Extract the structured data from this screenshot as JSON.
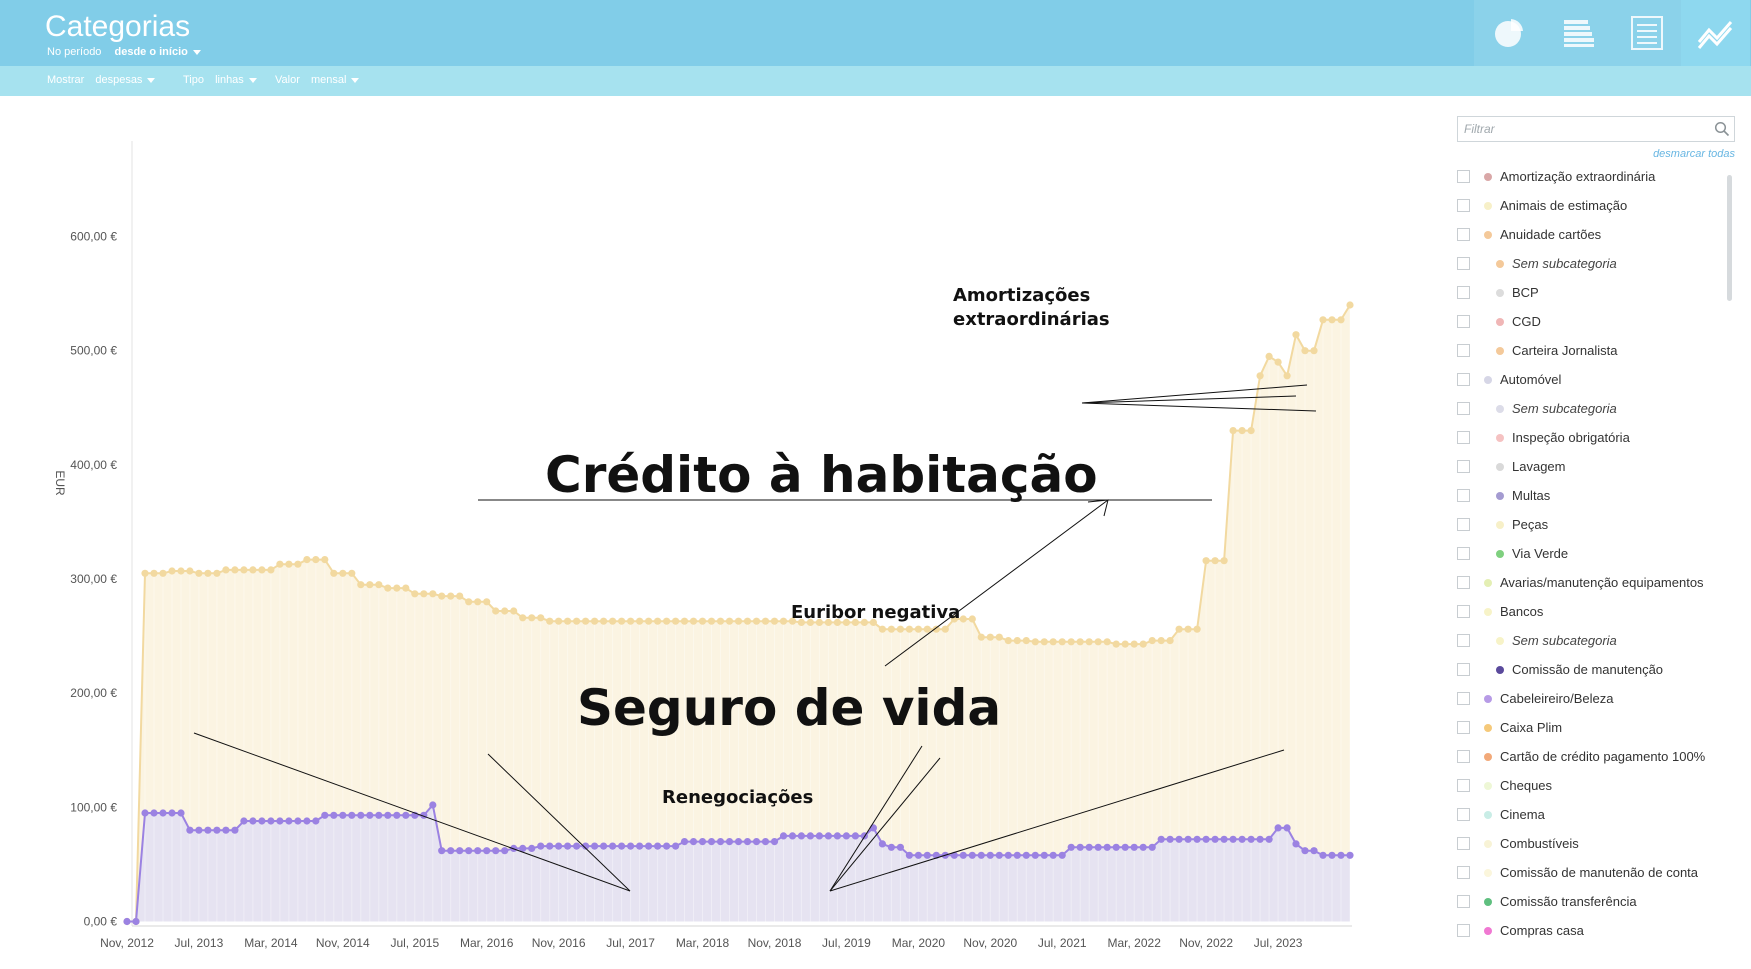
{
  "header": {
    "title": "Categorias",
    "period_label": "No período",
    "period_value": "desde o início"
  },
  "filters": {
    "show_label": "Mostrar",
    "show_value": "despesas",
    "type_label": "Tipo",
    "type_value": "linhas",
    "value_label": "Valor",
    "value_value": "mensal"
  },
  "views": [
    {
      "icon": "pie-chart-icon",
      "active": false
    },
    {
      "icon": "stacked-bars-icon",
      "active": false
    },
    {
      "icon": "list-document-icon",
      "active": false
    },
    {
      "icon": "line-chart-icon",
      "active": true
    }
  ],
  "sidebar": {
    "filter_placeholder": "Filtrar",
    "uncheck_all": "desmarcar todas",
    "categories": [
      {
        "label": "Amortização extraordinária",
        "color": "#d9a7a7",
        "sub": false,
        "italic": false
      },
      {
        "label": "Animais de estimação",
        "color": "#f7f0c8",
        "sub": false,
        "italic": false
      },
      {
        "label": "Anuidade cartões",
        "color": "#f4c99a",
        "sub": false,
        "italic": false
      },
      {
        "label": "Sem subcategoria",
        "color": "#f4c99a",
        "sub": true,
        "italic": true
      },
      {
        "label": "BCP",
        "color": "#dcdcdc",
        "sub": true,
        "italic": false
      },
      {
        "label": "CGD",
        "color": "#f0b6b6",
        "sub": true,
        "italic": false
      },
      {
        "label": "Carteira Jornalista",
        "color": "#f4c99a",
        "sub": true,
        "italic": false
      },
      {
        "label": "Automóvel",
        "color": "#d6d6e6",
        "sub": false,
        "italic": false
      },
      {
        "label": "Sem subcategoria",
        "color": "#dcdce8",
        "sub": true,
        "italic": true
      },
      {
        "label": "Inspeção obrigatória",
        "color": "#f5c2c2",
        "sub": true,
        "italic": false
      },
      {
        "label": "Lavagem",
        "color": "#d9d9d9",
        "sub": true,
        "italic": false
      },
      {
        "label": "Multas",
        "color": "#a49bd1",
        "sub": true,
        "italic": false
      },
      {
        "label": "Peças",
        "color": "#f7f0c8",
        "sub": true,
        "italic": false
      },
      {
        "label": "Via Verde",
        "color": "#7fd07f",
        "sub": true,
        "italic": false
      },
      {
        "label": "Avarias/manutenção equipamentos",
        "color": "#e4efb4",
        "sub": false,
        "italic": false
      },
      {
        "label": "Bancos",
        "color": "#f7f3c8",
        "sub": false,
        "italic": false
      },
      {
        "label": "Sem subcategoria",
        "color": "#f7f3c8",
        "sub": true,
        "italic": true
      },
      {
        "label": "Comissão de manutenção",
        "color": "#5a4a9c",
        "sub": true,
        "italic": false
      },
      {
        "label": "Cabeleireiro/Beleza",
        "color": "#b79be6",
        "sub": false,
        "italic": false
      },
      {
        "label": "Caixa Plim",
        "color": "#f5c97a",
        "sub": false,
        "italic": false
      },
      {
        "label": "Cartão de crédito pagamento 100%",
        "color": "#f2a979",
        "sub": false,
        "italic": false
      },
      {
        "label": "Cheques",
        "color": "#eef7d6",
        "sub": false,
        "italic": false
      },
      {
        "label": "Cinema",
        "color": "#c9ede6",
        "sub": false,
        "italic": false
      },
      {
        "label": "Combustíveis",
        "color": "#f8f3d6",
        "sub": false,
        "italic": false
      },
      {
        "label": "Comissão de manutenão de conta",
        "color": "#fbf6dc",
        "sub": false,
        "italic": false
      },
      {
        "label": "Comissão transferência",
        "color": "#5fbf7f",
        "sub": false,
        "italic": false
      },
      {
        "label": "Compras casa",
        "color": "#f078d2",
        "sub": false,
        "italic": false
      }
    ]
  },
  "chart_data": {
    "type": "area",
    "ylabel": "EUR",
    "ylim": [
      0,
      600
    ],
    "y_ticks": [
      "0,00 €",
      "100,00 €",
      "200,00 €",
      "300,00 €",
      "400,00 €",
      "500,00 €",
      "600,00 €"
    ],
    "x_ticks": [
      "Nov, 2012",
      "Jul, 2013",
      "Mar, 2014",
      "Nov, 2014",
      "Jul, 2015",
      "Mar, 2016",
      "Nov, 2016",
      "Jul, 2017",
      "Mar, 2018",
      "Nov, 2018",
      "Jul, 2019",
      "Mar, 2020",
      "Nov, 2020",
      "Jul, 2021",
      "Mar, 2022",
      "Nov, 2022",
      "Jul, 2023"
    ],
    "x_start": "Nov, 2012",
    "x_end": "Jan, 2024",
    "grid": false,
    "series": [
      {
        "name": "Crédito à habitação",
        "color": "#f2d9a0",
        "fill": "#fbf3e0",
        "segments": [
          [
            0,
            0,
            1,
            0
          ],
          [
            2,
            305,
            4,
            305
          ],
          [
            5,
            307,
            7,
            307
          ],
          [
            8,
            305,
            10,
            305
          ],
          [
            11,
            308,
            16,
            308
          ],
          [
            17,
            313,
            19,
            313
          ],
          [
            20,
            317,
            22,
            317
          ],
          [
            23,
            305,
            25,
            305
          ],
          [
            26,
            295,
            28,
            295
          ],
          [
            29,
            292,
            31,
            292
          ],
          [
            32,
            287,
            34,
            287
          ],
          [
            35,
            285,
            37,
            285
          ],
          [
            38,
            280,
            40,
            280
          ],
          [
            41,
            272,
            43,
            272
          ],
          [
            44,
            266,
            46,
            266
          ],
          [
            47,
            263,
            74,
            263
          ],
          [
            75,
            262,
            83,
            262
          ],
          [
            84,
            256,
            91,
            256
          ],
          [
            92,
            265,
            94,
            265
          ],
          [
            95,
            249,
            97,
            249
          ],
          [
            98,
            246,
            100,
            246
          ],
          [
            101,
            245,
            109,
            245
          ],
          [
            110,
            243,
            113,
            243
          ],
          [
            114,
            246,
            116,
            246
          ],
          [
            117,
            256,
            119,
            256
          ],
          [
            120,
            316,
            122,
            316
          ],
          [
            123,
            430,
            125,
            430
          ],
          [
            126,
            478,
            126,
            478
          ],
          [
            127,
            495,
            127,
            495
          ],
          [
            128,
            490,
            128,
            490
          ],
          [
            129,
            478,
            129,
            478
          ],
          [
            130,
            514,
            130,
            514
          ],
          [
            131,
            500,
            132,
            500
          ],
          [
            133,
            527,
            135,
            527
          ],
          [
            136,
            540,
            136,
            540
          ]
        ]
      },
      {
        "name": "Seguro de vida",
        "color": "#9b82e2",
        "fill": "#e5e1f1",
        "segments": [
          [
            0,
            0,
            1,
            0
          ],
          [
            2,
            95,
            6,
            95
          ],
          [
            7,
            80,
            12,
            80
          ],
          [
            13,
            88,
            21,
            88
          ],
          [
            22,
            93,
            33,
            93
          ],
          [
            34,
            102,
            34,
            102
          ],
          [
            35,
            62,
            42,
            62
          ],
          [
            43,
            64,
            45,
            64
          ],
          [
            46,
            66,
            61,
            66
          ],
          [
            62,
            70,
            72,
            70
          ],
          [
            73,
            75,
            82,
            75
          ],
          [
            83,
            82,
            83,
            82
          ],
          [
            84,
            68,
            84,
            68
          ],
          [
            85,
            65,
            86,
            65
          ],
          [
            87,
            58,
            94,
            58
          ],
          [
            95,
            58,
            104,
            58
          ],
          [
            105,
            65,
            114,
            65
          ],
          [
            115,
            72,
            127,
            72
          ],
          [
            128,
            82,
            129,
            82
          ],
          [
            130,
            68,
            130,
            68
          ],
          [
            131,
            62,
            132,
            62
          ],
          [
            133,
            58,
            136,
            58
          ]
        ]
      }
    ],
    "annotations": [
      "Amortizações",
      "extraordinárias",
      "Crédito à habitação",
      "Euribor negativa",
      "Seguro de vida",
      "Renegociações"
    ]
  }
}
